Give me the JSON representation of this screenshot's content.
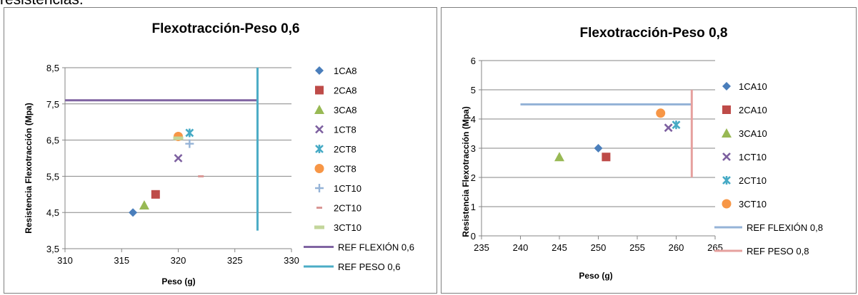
{
  "page": {
    "top_text": "resistencias."
  },
  "chart_data": [
    {
      "type": "scatter",
      "title": "Flexotracción-Peso 0,6",
      "xlabel": "Peso (g)",
      "ylabel": "Resistencia Flexotracción (Mpa)",
      "xlim": [
        310,
        330
      ],
      "ylim": [
        3.5,
        8.5
      ],
      "x_ticks": [
        310,
        315,
        320,
        325,
        330
      ],
      "y_ticks": [
        3.5,
        4.5,
        5.5,
        6.5,
        7.5,
        8.5
      ],
      "y_tick_labels": [
        "3,5",
        "4,5",
        "5,5",
        "6,5",
        "7,5",
        "8,5"
      ],
      "grid": "horizontal",
      "legend_position": "right",
      "series": [
        {
          "name": "1CA8",
          "marker": "diamond",
          "color": "#4a7ebb",
          "points": [
            [
              316,
              4.5
            ]
          ]
        },
        {
          "name": "2CA8",
          "marker": "square",
          "color": "#be4b48",
          "points": [
            [
              318,
              5.0
            ]
          ]
        },
        {
          "name": "3CA8",
          "marker": "triangle",
          "color": "#98b954",
          "points": [
            [
              317,
              4.7
            ]
          ]
        },
        {
          "name": "1CT8",
          "marker": "x",
          "color": "#7d60a0",
          "points": [
            [
              320,
              6.0
            ]
          ]
        },
        {
          "name": "2CT8",
          "marker": "star",
          "color": "#46aac5",
          "points": [
            [
              321,
              6.7
            ]
          ]
        },
        {
          "name": "3CT8",
          "marker": "circle",
          "color": "#f79646",
          "points": [
            [
              320,
              6.6
            ]
          ]
        },
        {
          "name": "1CT10",
          "marker": "plus",
          "color": "#95b3d7",
          "points": [
            [
              321,
              6.4
            ]
          ]
        },
        {
          "name": "2CT10",
          "marker": "dash",
          "color": "#d99694",
          "points": [
            [
              322,
              5.5
            ]
          ]
        },
        {
          "name": "3CT10",
          "marker": "bar",
          "color": "#c3d69b",
          "points": [
            [
              320,
              6.55
            ]
          ]
        }
      ],
      "lines": [
        {
          "name": "REF  FLEXIÓN 0,6",
          "color": "#8064a2",
          "points": [
            [
              310,
              7.6
            ],
            [
              327,
              7.6
            ]
          ]
        },
        {
          "name": "REF PESO 0,6",
          "color": "#4bacc6",
          "points": [
            [
              327,
              4.0
            ],
            [
              327,
              8.5
            ]
          ]
        }
      ]
    },
    {
      "type": "scatter",
      "title": "Flexotracción-Peso 0,8",
      "xlabel": "Peso (g)",
      "ylabel": "Resistencia Flexotracción (Mpa)",
      "xlim": [
        235,
        265
      ],
      "ylim": [
        0,
        6
      ],
      "x_ticks": [
        235,
        240,
        245,
        250,
        255,
        260,
        265
      ],
      "y_ticks": [
        0,
        1,
        2,
        3,
        4,
        5,
        6
      ],
      "y_tick_labels": [
        "0",
        "1",
        "2",
        "3",
        "4",
        "5",
        "6"
      ],
      "grid": "horizontal",
      "legend_position": "right",
      "series": [
        {
          "name": "1CA10",
          "marker": "diamond",
          "color": "#4a7ebb",
          "points": [
            [
              250,
              3.0
            ]
          ]
        },
        {
          "name": "2CA10",
          "marker": "square",
          "color": "#be4b48",
          "points": [
            [
              251,
              2.7
            ]
          ]
        },
        {
          "name": "3CA10",
          "marker": "triangle",
          "color": "#98b954",
          "points": [
            [
              245,
              2.7
            ]
          ]
        },
        {
          "name": "1CT10",
          "marker": "x",
          "color": "#7d60a0",
          "points": [
            [
              259,
              3.7
            ]
          ]
        },
        {
          "name": "2CT10",
          "marker": "star",
          "color": "#46aac5",
          "points": [
            [
              260,
              3.8
            ]
          ]
        },
        {
          "name": "3CT10",
          "marker": "circle",
          "color": "#f79646",
          "points": [
            [
              258,
              4.2
            ]
          ]
        }
      ],
      "lines": [
        {
          "name": "REF  FLEXIÓN 0,8",
          "color": "#95b3d7",
          "points": [
            [
              240,
              4.5
            ],
            [
              262,
              4.5
            ]
          ]
        },
        {
          "name": "REF PESO 0,8",
          "color": "#e6a09e",
          "points": [
            [
              262,
              2.0
            ],
            [
              262,
              5.0
            ]
          ]
        }
      ]
    }
  ]
}
